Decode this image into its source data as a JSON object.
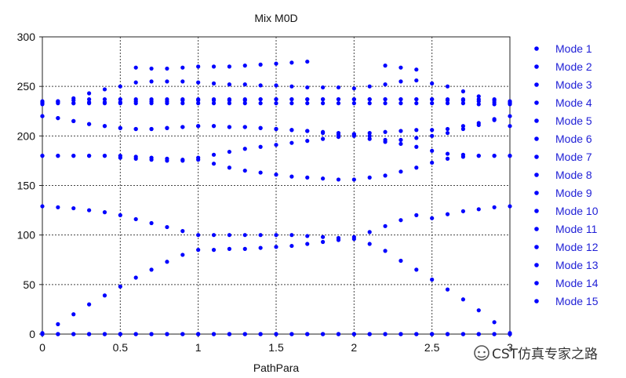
{
  "chart_data": {
    "type": "scatter",
    "title": "Mix M0D",
    "xlabel": "PathPara",
    "ylabel": "",
    "xlim": [
      0,
      3
    ],
    "ylim": [
      0,
      300
    ],
    "x_ticks": [
      "0",
      "0.5",
      "1",
      "1.5",
      "2",
      "2.5",
      "3"
    ],
    "y_ticks": [
      "0",
      "50",
      "100",
      "150",
      "200",
      "250",
      "300"
    ],
    "grid": true,
    "legend_position": "right",
    "marker_color": "#0000ff",
    "x": [
      0,
      0.1,
      0.2,
      0.3,
      0.4,
      0.5,
      0.6,
      0.7,
      0.8,
      0.9,
      1.0,
      1.1,
      1.2,
      1.3,
      1.4,
      1.5,
      1.6,
      1.7,
      1.8,
      1.9,
      2.0,
      2.1,
      2.2,
      2.3,
      2.4,
      2.5,
      2.6,
      2.7,
      2.8,
      2.9,
      3.0
    ],
    "series": [
      {
        "name": "Mode 1",
        "values": [
          0,
          0,
          0,
          0,
          0,
          0,
          0,
          0,
          0,
          0,
          0,
          0,
          0,
          0,
          0,
          0,
          0,
          0,
          0,
          0,
          0,
          0,
          0,
          0,
          0,
          0,
          0,
          0,
          0,
          0,
          0
        ]
      },
      {
        "name": "Mode 2",
        "values": [
          0,
          0,
          0,
          0,
          0,
          0,
          0,
          0,
          0,
          0,
          0,
          0,
          0,
          0,
          0,
          0,
          0,
          0,
          0,
          0,
          0,
          0,
          0,
          0,
          0,
          0,
          0,
          0,
          0,
          0,
          0
        ]
      },
      {
        "name": "Mode 3",
        "values": [
          0,
          0,
          0,
          0,
          0,
          0,
          0,
          0,
          0,
          0,
          0,
          0,
          0,
          0,
          0,
          0,
          0,
          0,
          0,
          0,
          0,
          0,
          0,
          0,
          0,
          0,
          0,
          0,
          0,
          0,
          0
        ]
      },
      {
        "name": "Mode 4",
        "values": [
          1,
          10,
          20,
          30,
          39,
          48,
          57,
          65,
          73,
          80,
          85,
          85,
          86,
          86,
          87,
          88,
          89,
          91,
          93,
          95,
          96,
          91,
          84,
          74,
          65,
          55,
          45,
          35,
          24,
          12,
          1
        ]
      },
      {
        "name": "Mode 5",
        "values": [
          129,
          128,
          127,
          125,
          123,
          120,
          116,
          112,
          108,
          104,
          100,
          100,
          100,
          100,
          100,
          100,
          100,
          99,
          98,
          97,
          98,
          103,
          109,
          115,
          120,
          117,
          121,
          124,
          126,
          128,
          129
        ]
      },
      {
        "name": "Mode 6",
        "values": [
          180,
          180,
          180,
          180,
          180,
          180,
          179,
          178,
          177,
          176,
          176,
          172,
          168,
          165,
          163,
          161,
          159,
          158,
          157,
          156,
          156,
          158,
          160,
          164,
          168,
          173,
          177,
          179,
          180,
          180,
          180
        ]
      },
      {
        "name": "Mode 7",
        "values": [
          180,
          180,
          180,
          180,
          180,
          178,
          177,
          176,
          175,
          175,
          178,
          181,
          184,
          187,
          189,
          191,
          193,
          195,
          197,
          199,
          201,
          200,
          196,
          192,
          189,
          185,
          182,
          181,
          180,
          180,
          180
        ]
      },
      {
        "name": "Mode 8",
        "values": [
          220,
          218,
          215,
          212,
          210,
          208,
          207,
          207,
          208,
          209,
          210,
          210,
          209,
          209,
          208,
          207,
          206,
          205,
          203,
          201,
          200,
          197,
          194,
          196,
          198,
          200,
          203,
          207,
          211,
          216,
          220
        ]
      },
      {
        "name": "Mode 9",
        "values": [
          220,
          218,
          215,
          212,
          210,
          208,
          207,
          207,
          208,
          209,
          210,
          210,
          209,
          209,
          208,
          207,
          206,
          205,
          204,
          203,
          202,
          203,
          204,
          205,
          206,
          206,
          207,
          210,
          213,
          217,
          210
        ]
      },
      {
        "name": "Mode 10",
        "values": [
          232,
          233,
          233,
          234,
          234,
          234,
          235,
          235,
          235,
          236,
          236,
          236,
          236,
          236,
          237,
          237,
          237,
          237,
          237,
          237,
          237,
          237,
          237,
          237,
          237,
          237,
          236,
          236,
          235,
          234,
          232
        ]
      },
      {
        "name": "Mode 11",
        "values": [
          233,
          235,
          238,
          243,
          247,
          250,
          254,
          255,
          255,
          255,
          254,
          253,
          252,
          252,
          251,
          251,
          250,
          249,
          249,
          249,
          248,
          250,
          252,
          255,
          256,
          253,
          250,
          245,
          240,
          236,
          233
        ]
      },
      {
        "name": "Mode 12",
        "values": [
          234,
          235,
          236,
          237,
          237,
          237,
          237,
          237,
          237,
          237,
          237,
          237,
          237,
          237,
          237,
          237,
          237,
          237,
          237,
          237,
          237,
          237,
          237,
          237,
          237,
          237,
          237,
          237,
          237,
          237,
          234
        ]
      },
      {
        "name": "Mode 13",
        "values": [
          235,
          234,
          233,
          233,
          233,
          233,
          233,
          233,
          233,
          233,
          233,
          233,
          233,
          233,
          233,
          233,
          233,
          233,
          233,
          233,
          233,
          233,
          233,
          233,
          233,
          233,
          233,
          233,
          232,
          232,
          235
        ]
      },
      {
        "name": "Mode 14",
        "values": [
          null,
          null,
          null,
          null,
          null,
          null,
          269,
          268,
          268,
          269,
          270,
          270,
          270,
          271,
          272,
          273,
          274,
          275,
          null,
          null,
          null,
          null,
          271,
          269,
          267,
          null,
          null,
          null,
          null,
          null,
          null
        ]
      },
      {
        "name": "Mode 15",
        "values": [
          null,
          null,
          null,
          null,
          null,
          null,
          null,
          null,
          null,
          null,
          null,
          null,
          null,
          null,
          null,
          null,
          null,
          null,
          null,
          null,
          null,
          null,
          null,
          null,
          null,
          null,
          null,
          null,
          null,
          null,
          null
        ]
      }
    ]
  },
  "watermark": {
    "text": "CST仿真专家之路",
    "icon": "wechat-icon"
  }
}
